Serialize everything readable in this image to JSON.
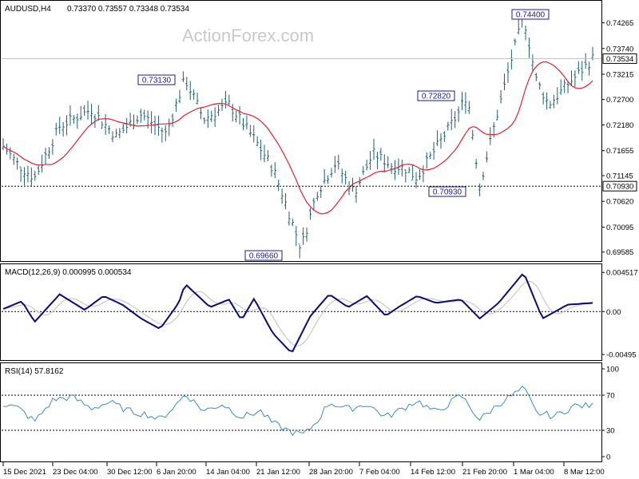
{
  "header": {
    "symbol": "AUDUSD,H4",
    "ohlc": "0.73370 0.73557 0.73348 0.73534"
  },
  "watermark": "ActionForex.com",
  "colors": {
    "bars": "#1f5f78",
    "ma": "#e8202a",
    "macd": "#0a0a78",
    "signal": "#c8c8c8",
    "rsi": "#3a8bd0",
    "grid": "#000000"
  },
  "price_panel": {
    "ticks": [
      "0.74265",
      "0.73740",
      "0.73215",
      "0.72700",
      "0.72180",
      "0.71655",
      "0.71145",
      "0.70620",
      "0.70095",
      "0.69585"
    ],
    "current_label": "0.73534",
    "hline_label": "0.70930",
    "annotations": [
      "0.74400",
      "0.73130",
      "0.72820",
      "0.70930",
      "0.69660"
    ]
  },
  "macd_panel": {
    "header": "MACD(12,26,9) 0.000995 0.000534",
    "ticks": [
      "0.004517",
      "0.00",
      "-0.00495"
    ]
  },
  "rsi_panel": {
    "header": "RSI(14) 57.8162",
    "ticks": [
      "100",
      "70",
      "30",
      "0"
    ]
  },
  "x_axis": [
    "15 Dec 2021",
    "23 Dec 04:00",
    "30 Dec 12:00",
    "6 Jan 20:00",
    "14 Jan 04:00",
    "21 Jan 12:00",
    "28 Jan 20:00",
    "7 Feb 04:00",
    "14 Feb 12:00",
    "21 Feb 20:00",
    "1 Mar 04:00",
    "8 Mar 12:00"
  ],
  "chart_data": [
    {
      "type": "line",
      "title": "AUDUSD,H4 0.73370 0.73557 0.73348 0.73534",
      "x": [
        "15 Dec 2021",
        "23 Dec 04:00",
        "30 Dec 12:00",
        "6 Jan 20:00",
        "14 Jan 04:00",
        "21 Jan 12:00",
        "28 Jan 20:00",
        "7 Feb 04:00",
        "14 Feb 12:00",
        "21 Feb 20:00",
        "1 Mar 04:00",
        "8 Mar 12:00"
      ],
      "series": [
        {
          "name": "",
          "values": [
            0.7175,
            0.7215,
            0.725,
            0.724,
            0.728,
            0.7095,
            0.701,
            0.716,
            0.7135,
            0.724,
            0.732,
            0.729
          ]
        },
        {
          "name": "",
          "values": [
            0.713,
            0.718,
            0.7225,
            0.721,
            0.7215,
            0.7195,
            0.711,
            0.711,
            0.712,
            0.717,
            0.7255,
            0.7295
          ]
        }
      ],
      "ylim": [
        0.6945,
        0.746
      ],
      "horizontal_line": 0.7093,
      "current_price": 0.73534,
      "annotations": [
        {
          "label": "0.74400",
          "x": "3 Mar 2022",
          "y": 0.744
        },
        {
          "label": "0.73130",
          "x": "13 Jan 2022",
          "y": 0.7313
        },
        {
          "label": "0.72820",
          "x": "24 Feb 2022",
          "y": 0.7282
        },
        {
          "label": "0.70930",
          "x": "24 Feb 2022",
          "y": 0.7093
        },
        {
          "label": "0.69660",
          "x": "28 Jan 2022",
          "y": 0.6966
        }
      ]
    },
    {
      "type": "line",
      "title": "MACD(12,26,9) 0.000995 0.000534",
      "x": [
        "15 Dec 2021",
        "23 Dec 04:00",
        "30 Dec 12:00",
        "6 Jan 20:00",
        "14 Jan 04:00",
        "21 Jan 12:00",
        "28 Jan 20:00",
        "7 Feb 04:00",
        "14 Feb 12:00",
        "21 Feb 20:00",
        "1 Mar 04:00",
        "8 Mar 12:00"
      ],
      "series": [
        {
          "name": "",
          "values": [
            0.001,
            0.001,
            0.0012,
            -0.001,
            0.003,
            -0.0008,
            -0.005,
            0.0012,
            0.001,
            0.0013,
            0.003,
            0.001
          ]
        },
        {
          "name": "",
          "values": [
            0.0008,
            0.001,
            0.0012,
            -0.0005,
            0.002,
            -0.0002,
            -0.0035,
            0.0008,
            0.0008,
            0.001,
            0.0025,
            0.0005
          ]
        }
      ],
      "ylim": [
        -0.0055,
        0.005
      ]
    },
    {
      "type": "line",
      "title": "RSI(14) 57.8162",
      "x": [
        "15 Dec 2021",
        "23 Dec 04:00",
        "30 Dec 12:00",
        "6 Jan 20:00",
        "14 Jan 04:00",
        "21 Jan 12:00",
        "28 Jan 20:00",
        "7 Feb 04:00",
        "14 Feb 12:00",
        "21 Feb 20:00",
        "1 Mar 04:00",
        "8 Mar 12:00"
      ],
      "series": [
        {
          "name": "",
          "values": [
            55,
            60,
            62,
            48,
            68,
            45,
            30,
            58,
            52,
            62,
            72,
            58
          ]
        }
      ],
      "ylim": [
        0,
        100
      ],
      "levels": [
        70,
        30
      ]
    }
  ]
}
